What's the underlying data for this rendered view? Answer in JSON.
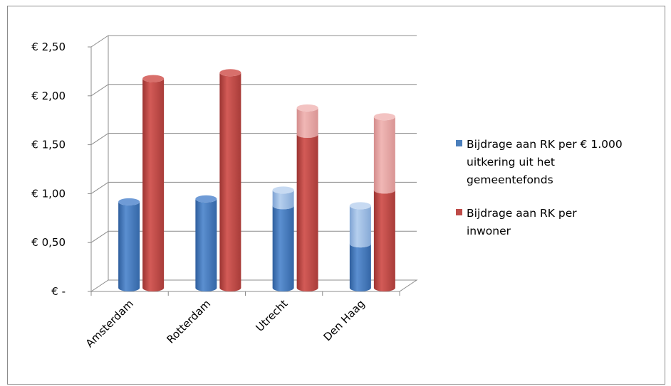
{
  "chart_data": {
    "type": "bar",
    "categories": [
      "Amsterdam",
      "Rotterdam",
      "Utrecht",
      "Den Haag"
    ],
    "ylim": [
      0,
      2.5
    ],
    "yticks": [
      {
        "value": 0,
        "label": "€ -"
      },
      {
        "value": 0.5,
        "label": "€ 0,50"
      },
      {
        "value": 1.0,
        "label": "€ 1,00"
      },
      {
        "value": 1.5,
        "label": "€ 1,50"
      },
      {
        "value": 2.0,
        "label": "€ 2,00"
      },
      {
        "value": 2.5,
        "label": "€ 2,50"
      }
    ],
    "grid": true,
    "legend_position": "right",
    "series": [
      {
        "name": "Bijdrage aan RK per € 1.000 uitkering uit het gemeentefonds",
        "color": "#4a7ebb",
        "light_color": "#9dbbe0",
        "values": [
          0.88,
          0.91,
          0.84,
          0.45
        ],
        "upper_values": [
          0.88,
          0.91,
          1.0,
          0.84
        ]
      },
      {
        "name": "Bijdrage aan RK per inwoner",
        "color": "#be4b48",
        "light_color": "#e6a0a0",
        "values": [
          2.14,
          2.2,
          1.57,
          1.0
        ],
        "upper_values": [
          2.14,
          2.2,
          1.84,
          1.75
        ]
      }
    ],
    "legend": [
      {
        "lines": [
          "Bijdrage aan RK per  € 1.000",
          "uitkering uit het",
          "gemeentefonds"
        ],
        "color": "#4a7ebb"
      },
      {
        "lines": [
          "Bijdrage aan RK per",
          "inwoner"
        ],
        "color": "#be4b48"
      }
    ]
  }
}
